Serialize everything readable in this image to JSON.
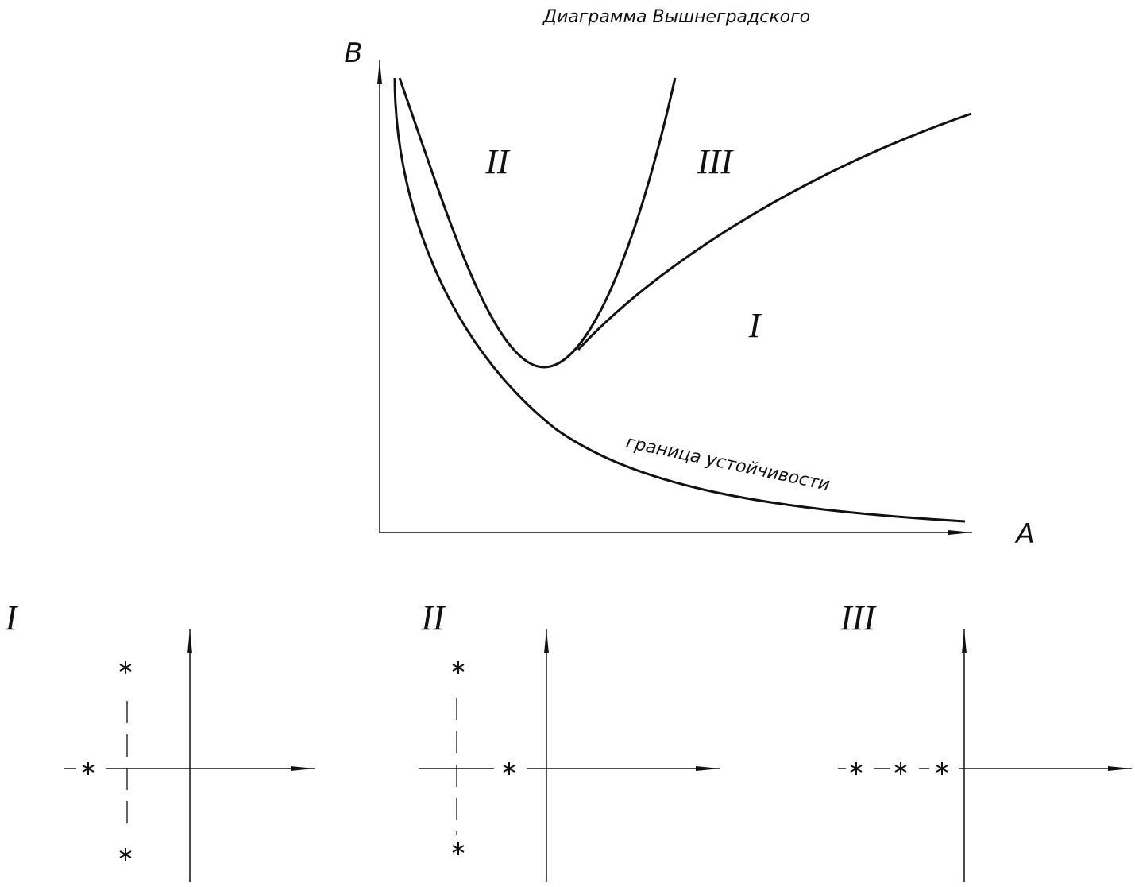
{
  "title": "Диаграмма Вышнеградского",
  "axes": {
    "y_label": "B",
    "x_label": "A"
  },
  "regions": [
    "II",
    "III",
    "I"
  ],
  "curve_label": "граница устойчивости",
  "panels": [
    {
      "label": "I"
    },
    {
      "label": "II"
    },
    {
      "label": "III"
    }
  ]
}
